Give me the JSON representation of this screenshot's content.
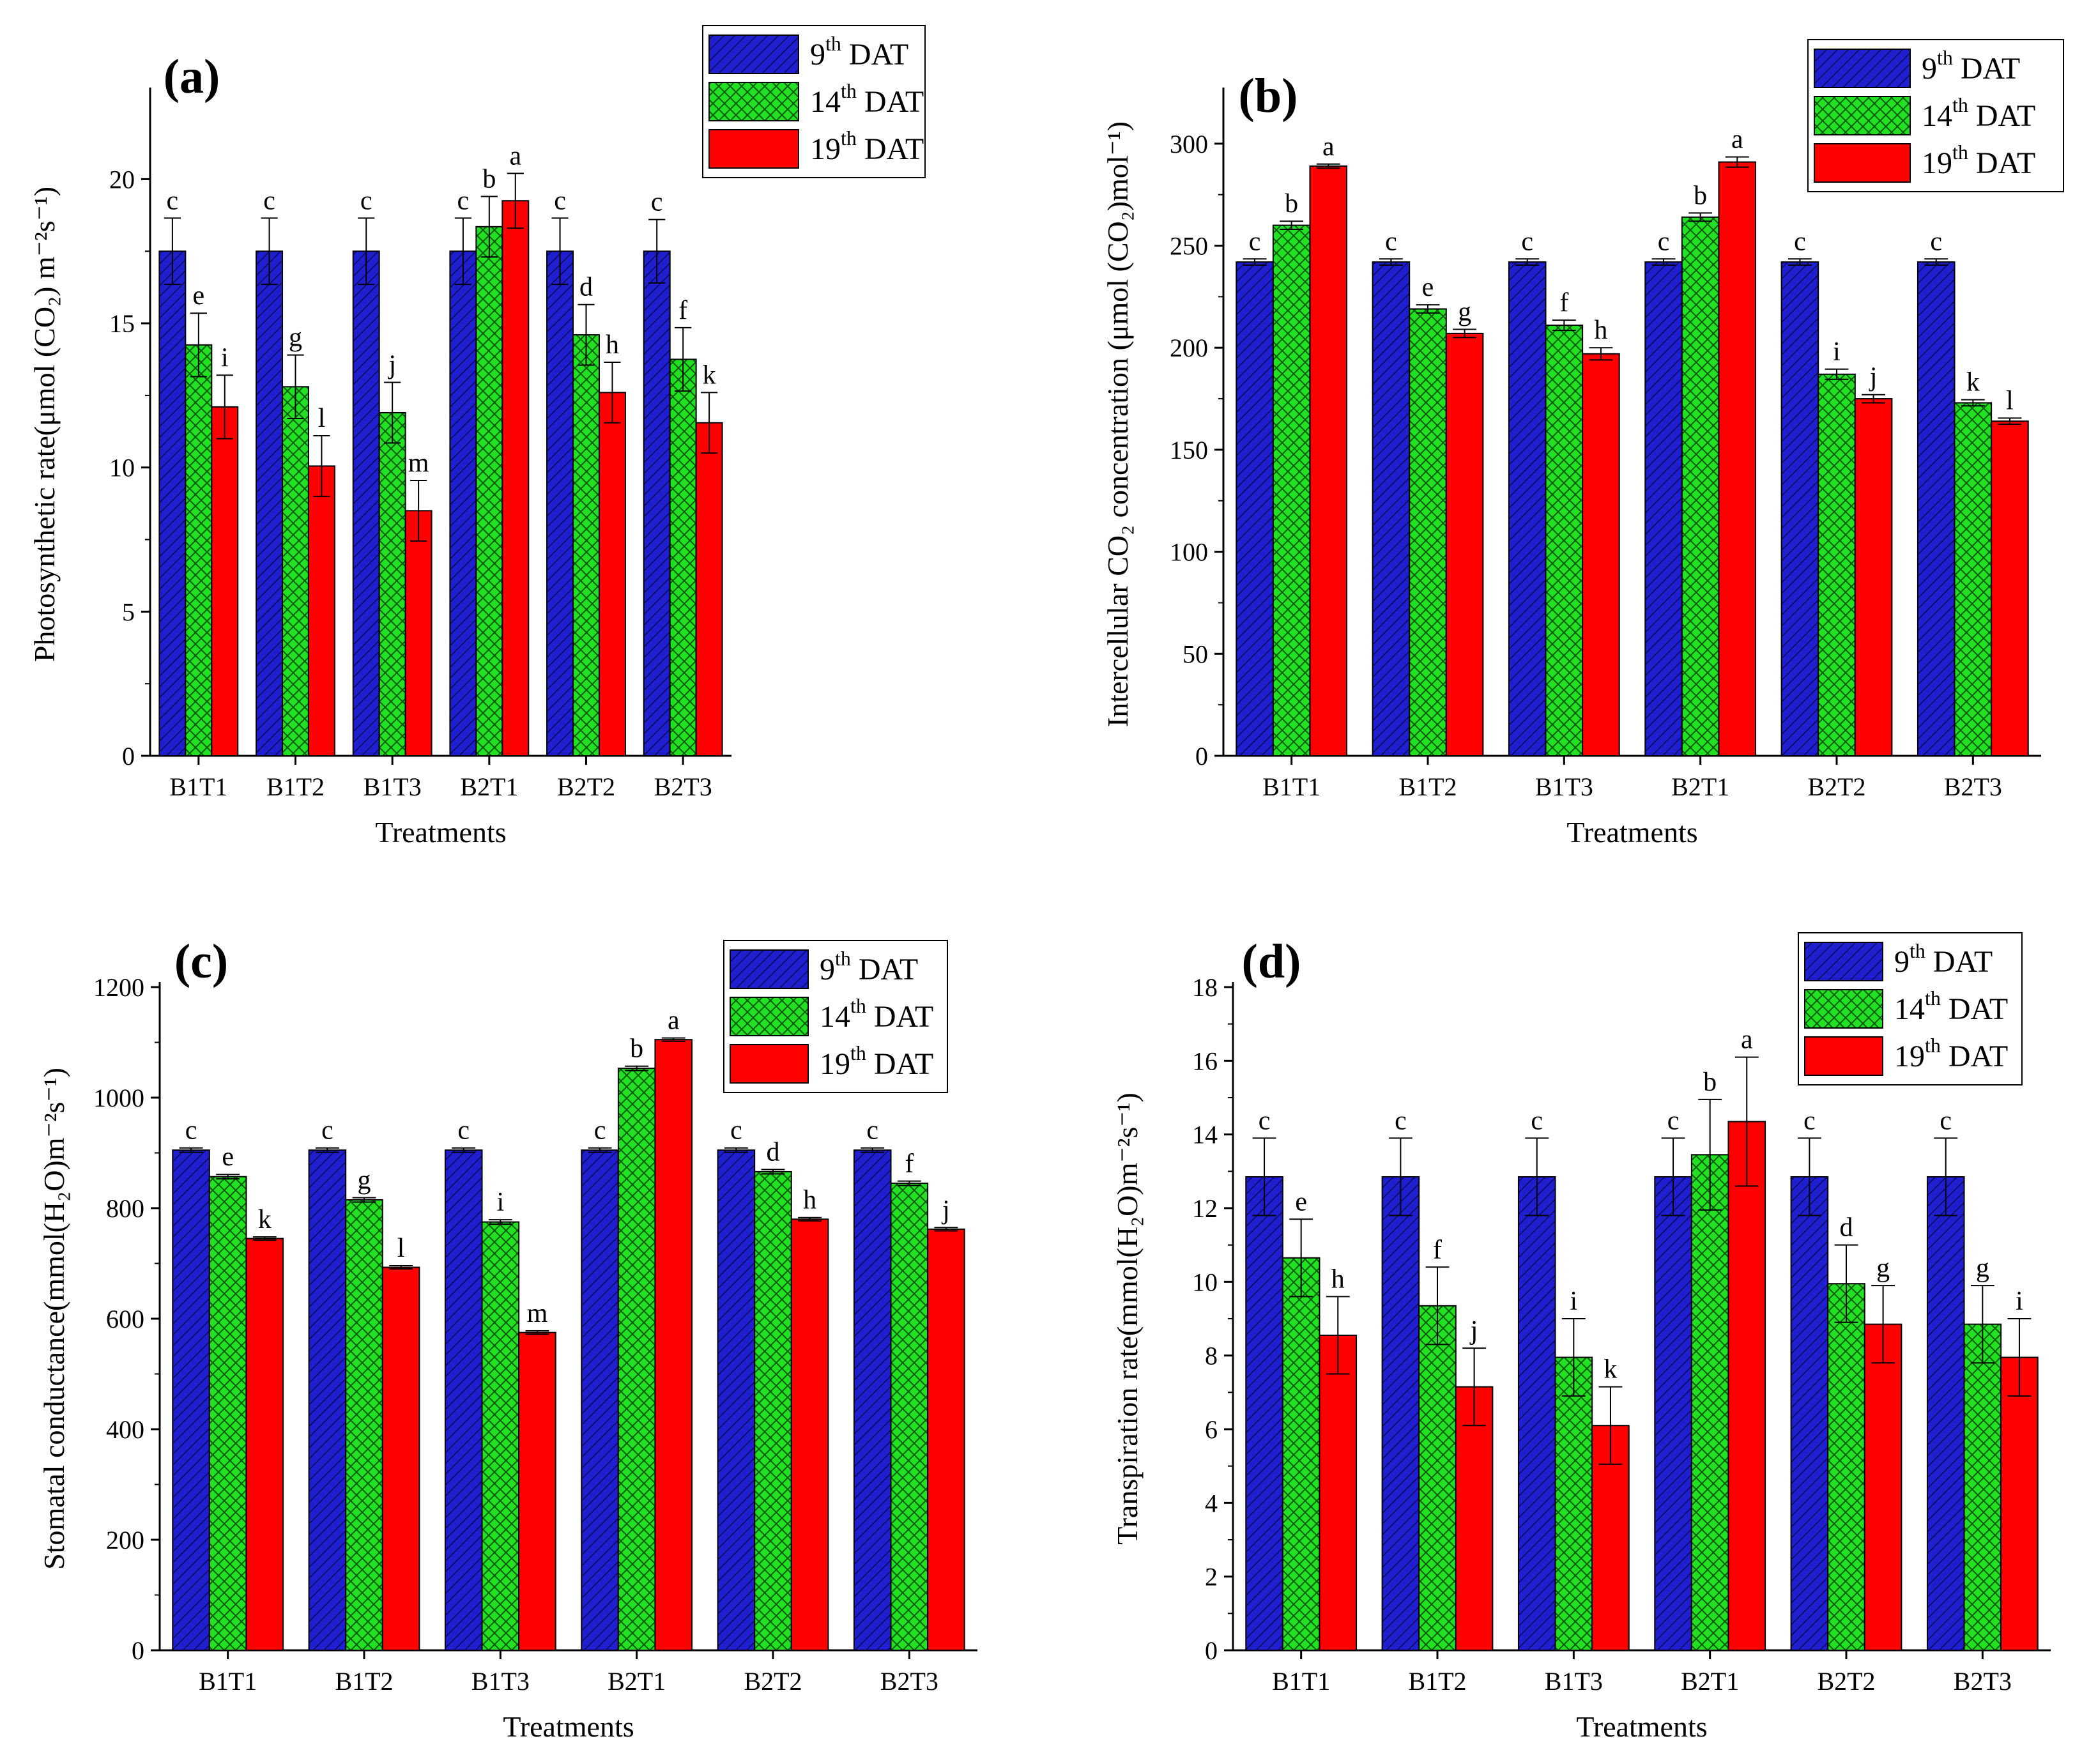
{
  "colors": {
    "series": [
      "#1f1fd0",
      "#22e022",
      "#ff0000"
    ],
    "hatch_line": [
      "#0a0a55",
      "#0a5a0a",
      "#ff0000"
    ],
    "axis": "#000000"
  },
  "legend_entries": [
    {
      "sup": "th",
      "base": "9",
      "suffix": "DAT"
    },
    {
      "sup": "th",
      "base": "14",
      "suffix": "DAT"
    },
    {
      "sup": "th",
      "base": "19",
      "suffix": "DAT"
    }
  ],
  "chart_data": [
    {
      "type": "bar",
      "panel_label": "(a)",
      "categories": [
        "B1T1",
        "B1T2",
        "B1T3",
        "B2T1",
        "B2T2",
        "B2T3"
      ],
      "xlabel": "Treatments",
      "ylabel": "Photosynthetic rate(μmol (CO₂) m⁻²s⁻¹)",
      "ylim": [
        0,
        23
      ],
      "yticks": [
        0,
        5,
        10,
        15,
        20
      ],
      "series": [
        {
          "name": "9th DAT",
          "values": [
            17.5,
            17.5,
            17.5,
            17.5,
            17.5,
            17.5
          ],
          "errors": [
            1.15,
            1.15,
            1.15,
            1.15,
            1.15,
            1.1
          ],
          "letters": [
            "c",
            "c",
            "c",
            "c",
            "c",
            "c"
          ]
        },
        {
          "name": "14th DAT",
          "values": [
            14.25,
            12.8,
            11.9,
            18.35,
            14.6,
            13.75
          ],
          "errors": [
            1.1,
            1.1,
            1.05,
            1.05,
            1.05,
            1.1
          ],
          "letters": [
            "e",
            "g",
            "j",
            "b",
            "d",
            "f"
          ]
        },
        {
          "name": "19th DAT",
          "values": [
            12.1,
            10.05,
            8.5,
            19.25,
            12.6,
            11.55
          ],
          "errors": [
            1.1,
            1.05,
            1.05,
            0.95,
            1.05,
            1.05
          ],
          "letters": [
            "i",
            "l",
            "m",
            "a",
            "h",
            "k"
          ]
        }
      ],
      "legend": "top-right"
    },
    {
      "type": "bar",
      "panel_label": "(b)",
      "categories": [
        "B1T1",
        "B1T2",
        "B1T3",
        "B2T1",
        "B2T2",
        "B2T3"
      ],
      "xlabel": "Treatments",
      "ylabel": "Intercellular CO₂ concentration (μmol (CO₂)mol⁻¹)",
      "ylim": [
        0,
        325
      ],
      "yticks": [
        0,
        50,
        100,
        150,
        200,
        250,
        300
      ],
      "series": [
        {
          "name": "9th DAT",
          "values": [
            242,
            242,
            242,
            242,
            242,
            242
          ],
          "errors": [
            1.5,
            1.5,
            1.5,
            1.5,
            1.5,
            1.5
          ],
          "letters": [
            "c",
            "c",
            "c",
            "c",
            "c",
            "c"
          ]
        },
        {
          "name": "14th DAT",
          "values": [
            260,
            219,
            211,
            264,
            187,
            173
          ],
          "errors": [
            2.0,
            2.0,
            2.5,
            2.0,
            2.5,
            1.5
          ],
          "letters": [
            "b",
            "e",
            "f",
            "b",
            "i",
            "k"
          ]
        },
        {
          "name": "19th DAT",
          "values": [
            289,
            207,
            197,
            291,
            175,
            164
          ],
          "errors": [
            1.0,
            2.0,
            3.0,
            2.5,
            2.0,
            1.5
          ],
          "letters": [
            "a",
            "g",
            "h",
            "a",
            "j",
            "l"
          ]
        }
      ],
      "legend": "top-right"
    },
    {
      "type": "bar",
      "panel_label": "(c)",
      "categories": [
        "B1T1",
        "B1T2",
        "B1T3",
        "B2T1",
        "B2T2",
        "B2T3"
      ],
      "xlabel": "Treatments",
      "ylabel": "Stomatal conductance(mmol(H₂O)m⁻²s⁻¹)",
      "ylim": [
        0,
        1200
      ],
      "yticks": [
        0,
        200,
        400,
        600,
        800,
        1000,
        1200
      ],
      "series": [
        {
          "name": "9th DAT",
          "values": [
            905,
            905,
            905,
            905,
            905,
            905
          ],
          "errors": [
            4,
            4,
            4,
            4,
            4,
            4
          ],
          "letters": [
            "c",
            "c",
            "c",
            "c",
            "c",
            "c"
          ]
        },
        {
          "name": "14th DAT",
          "values": [
            857,
            815,
            775,
            1053,
            866,
            845
          ],
          "errors": [
            4,
            4,
            4,
            4,
            4,
            4
          ],
          "letters": [
            "e",
            "g",
            "i",
            "b",
            "d",
            "f"
          ]
        },
        {
          "name": "19th DAT",
          "values": [
            745,
            693,
            575,
            1105,
            780,
            762
          ],
          "errors": [
            3,
            3,
            3,
            3,
            3,
            3
          ],
          "letters": [
            "k",
            "l",
            "m",
            "a",
            "h",
            "j"
          ]
        }
      ],
      "legend": "top-right"
    },
    {
      "type": "bar",
      "panel_label": "(d)",
      "categories": [
        "B1T1",
        "B1T2",
        "B1T3",
        "B2T1",
        "B2T2",
        "B2T3"
      ],
      "xlabel": "Treatments",
      "ylabel": "Transpiration rate(mmol(H₂O)m⁻²s⁻¹)",
      "ylim": [
        0,
        18
      ],
      "yticks": [
        0,
        2,
        4,
        6,
        8,
        10,
        12,
        14,
        16,
        18
      ],
      "series": [
        {
          "name": "9th DAT",
          "values": [
            12.85,
            12.85,
            12.85,
            12.85,
            12.85,
            12.85
          ],
          "errors": [
            1.05,
            1.05,
            1.05,
            1.05,
            1.05,
            1.05
          ],
          "letters": [
            "c",
            "c",
            "c",
            "c",
            "c",
            "c"
          ]
        },
        {
          "name": "14th DAT",
          "values": [
            10.65,
            9.35,
            7.95,
            13.45,
            9.95,
            8.85
          ],
          "errors": [
            1.05,
            1.05,
            1.05,
            1.5,
            1.05,
            1.05
          ],
          "letters": [
            "e",
            "f",
            "i",
            "b",
            "d",
            "g"
          ]
        },
        {
          "name": "19th DAT",
          "values": [
            8.55,
            7.15,
            6.1,
            14.35,
            8.85,
            7.95
          ],
          "errors": [
            1.05,
            1.05,
            1.05,
            1.75,
            1.05,
            1.05
          ],
          "letters": [
            "h",
            "j",
            "k",
            "a",
            "g",
            "i"
          ]
        }
      ],
      "legend": "top-right"
    }
  ]
}
